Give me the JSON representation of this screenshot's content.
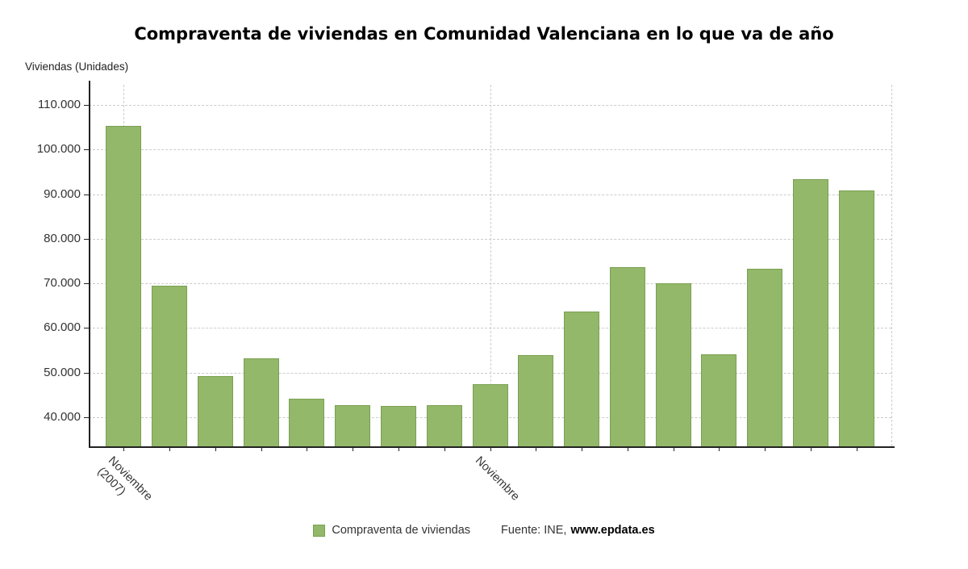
{
  "title": "Compraventa de viviendas en Comunidad Valenciana en lo que va de año",
  "legend": {
    "label": "Compraventa de viviendas"
  },
  "source": {
    "prefix": "Fuente: INE,",
    "site": "www.epdata.es"
  },
  "colors": {
    "bar": "#93b869",
    "bar_border": "#7aa052",
    "grid": "#cccccc",
    "axis": "#222222",
    "text": "#333333"
  },
  "chart_data": {
    "type": "bar",
    "title": "Compraventa de viviendas en Comunidad Valenciana en lo que va de año",
    "xlabel": "",
    "ylabel": "Viviendas (Unidades)",
    "series_name": "Compraventa de viviendas",
    "values": [
      105200,
      69500,
      49300,
      53200,
      44100,
      42700,
      42500,
      42700,
      47400,
      54000,
      63700,
      73700,
      70100,
      54200,
      73200,
      93400,
      90900
    ],
    "x_tick_labels": [
      {
        "index": 0,
        "lines": [
          "Noviembre",
          "(2007)"
        ]
      },
      {
        "index": 8,
        "lines": [
          "Noviembre"
        ]
      }
    ],
    "y_ticks": [
      40000,
      50000,
      60000,
      70000,
      80000,
      90000,
      100000,
      110000
    ],
    "ylim": [
      33500,
      114500
    ],
    "grid": true,
    "legend_position": "bottom"
  }
}
